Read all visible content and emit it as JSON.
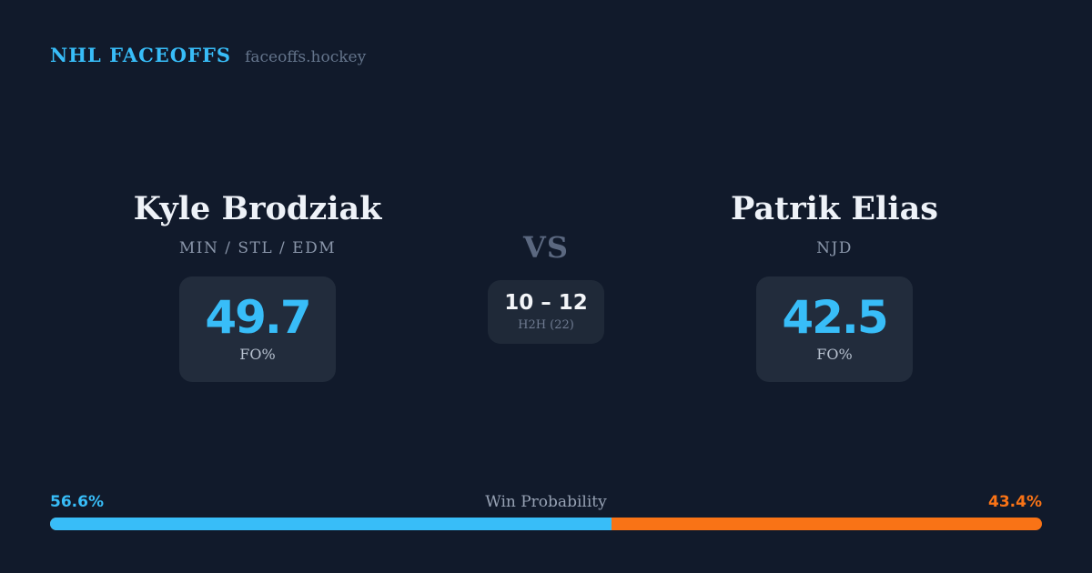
{
  "header": {
    "brand": "NHL FACEOFFS",
    "site": "faceoffs.hockey"
  },
  "matchup": {
    "vs_label": "VS",
    "player1": {
      "name": "Kyle Brodziak",
      "teams": "MIN / STL / EDM",
      "fo_pct": "49.7",
      "stat_label": "FO%"
    },
    "player2": {
      "name": "Patrik Elias",
      "teams": "NJD",
      "fo_pct": "42.5",
      "stat_label": "FO%"
    },
    "h2h": {
      "score": "10 – 12",
      "label": "H2H (22)"
    }
  },
  "win_probability": {
    "title": "Win Probability",
    "left_pct": "56.6%",
    "right_pct": "43.4%",
    "left_value": 56.6,
    "right_value": 43.4
  },
  "colors": {
    "background": "#111a2b",
    "card": "#222c3c",
    "h2h_card": "#1f2938",
    "accent_blue": "#38bdf8",
    "accent_orange": "#f97316",
    "text_primary": "#eef2f8",
    "text_muted": "#8a96aa"
  }
}
